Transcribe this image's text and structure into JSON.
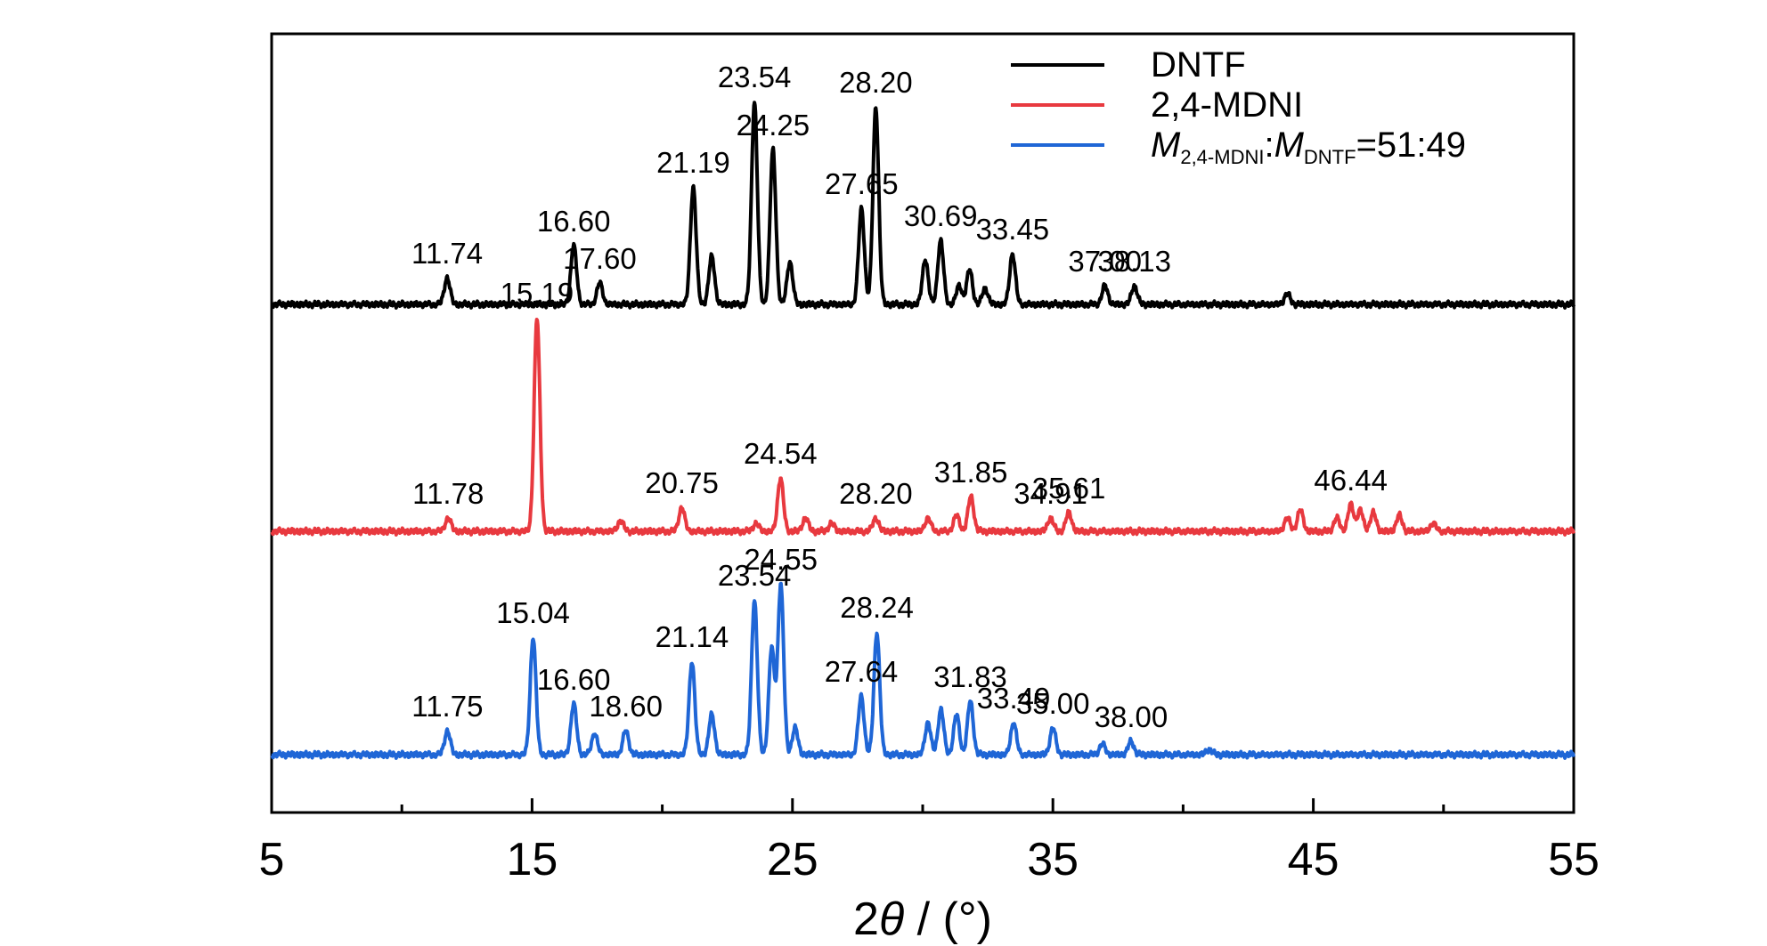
{
  "chart_data": {
    "type": "line",
    "xlabel_parts": {
      "prefix": "2",
      "symbol": "θ",
      "suffix": " / (°)"
    },
    "xlim": [
      5,
      55
    ],
    "xticks": [
      5,
      15,
      25,
      35,
      45,
      55
    ],
    "y_axis": "no ticks, no labels (stacked, offset patterns)",
    "grid": false,
    "legend_position": "top-right",
    "legend": [
      {
        "label": "DNTF",
        "color": "#000000"
      },
      {
        "label": "2,4-MDNI",
        "color": "#e8393f"
      },
      {
        "label_parts": {
          "m1": "M",
          "s1": "2,4-MDNI",
          "colon": ":",
          "m2": "M",
          "s2": "DNTF",
          "ratio": "=51:49"
        },
        "color": "#1f66d6"
      }
    ],
    "series": [
      {
        "name": "DNTF",
        "color": "#000000",
        "peaks": [
          {
            "x": 11.74,
            "h": 0.1,
            "label": "11.74"
          },
          {
            "x": 16.6,
            "h": 0.22,
            "label": "16.60"
          },
          {
            "x": 17.6,
            "h": 0.08,
            "label": "17.60"
          },
          {
            "x": 21.19,
            "h": 0.44,
            "label": "21.19"
          },
          {
            "x": 21.9,
            "h": 0.18
          },
          {
            "x": 23.54,
            "h": 0.76,
            "label": "23.54"
          },
          {
            "x": 24.25,
            "h": 0.58,
            "label": "24.25"
          },
          {
            "x": 24.9,
            "h": 0.16
          },
          {
            "x": 27.65,
            "h": 0.36,
            "label": "27.65"
          },
          {
            "x": 28.2,
            "h": 0.74,
            "label": "28.20"
          },
          {
            "x": 30.1,
            "h": 0.17
          },
          {
            "x": 30.69,
            "h": 0.24,
            "label": "30.69"
          },
          {
            "x": 31.4,
            "h": 0.07
          },
          {
            "x": 31.8,
            "h": 0.13
          },
          {
            "x": 32.4,
            "h": 0.06
          },
          {
            "x": 33.45,
            "h": 0.19,
            "label": "33.45"
          },
          {
            "x": 37.0,
            "h": 0.07,
            "label": "37.00"
          },
          {
            "x": 38.13,
            "h": 0.07,
            "label": "38.13"
          },
          {
            "x": 44.0,
            "h": 0.04
          }
        ]
      },
      {
        "name": "2,4-MDNI",
        "color": "#e8393f",
        "peaks": [
          {
            "x": 11.78,
            "h": 0.05,
            "label": "11.78"
          },
          {
            "x": 15.19,
            "h": 0.8,
            "label": "15.19"
          },
          {
            "x": 18.4,
            "h": 0.04
          },
          {
            "x": 20.75,
            "h": 0.09,
            "label": "20.75"
          },
          {
            "x": 23.6,
            "h": 0.03
          },
          {
            "x": 24.54,
            "h": 0.2,
            "label": "24.54"
          },
          {
            "x": 25.5,
            "h": 0.05
          },
          {
            "x": 26.5,
            "h": 0.03
          },
          {
            "x": 28.2,
            "h": 0.05,
            "label": "28.20"
          },
          {
            "x": 30.2,
            "h": 0.05
          },
          {
            "x": 31.3,
            "h": 0.06
          },
          {
            "x": 31.85,
            "h": 0.13,
            "label": "31.85"
          },
          {
            "x": 34.91,
            "h": 0.05,
            "label": "34.91"
          },
          {
            "x": 35.61,
            "h": 0.07,
            "label": "35.61"
          },
          {
            "x": 44.0,
            "h": 0.05
          },
          {
            "x": 44.5,
            "h": 0.08
          },
          {
            "x": 45.9,
            "h": 0.05
          },
          {
            "x": 46.44,
            "h": 0.1,
            "label": "46.44"
          },
          {
            "x": 46.8,
            "h": 0.08
          },
          {
            "x": 47.3,
            "h": 0.07
          },
          {
            "x": 48.3,
            "h": 0.06
          },
          {
            "x": 49.6,
            "h": 0.03
          }
        ]
      },
      {
        "name": "M2,4-MDNI:MDNTF=51:49",
        "color": "#1f66d6",
        "peaks": [
          {
            "x": 11.75,
            "h": 0.09,
            "label": "11.75"
          },
          {
            "x": 15.04,
            "h": 0.44,
            "label": "15.04"
          },
          {
            "x": 16.6,
            "h": 0.19,
            "label": "16.60"
          },
          {
            "x": 17.4,
            "h": 0.08
          },
          {
            "x": 18.6,
            "h": 0.09,
            "label": "18.60"
          },
          {
            "x": 21.14,
            "h": 0.35,
            "label": "21.14"
          },
          {
            "x": 21.9,
            "h": 0.15
          },
          {
            "x": 23.54,
            "h": 0.58,
            "label": "23.54"
          },
          {
            "x": 24.2,
            "h": 0.4
          },
          {
            "x": 24.55,
            "h": 0.64,
            "label": "24.55"
          },
          {
            "x": 25.1,
            "h": 0.1
          },
          {
            "x": 27.64,
            "h": 0.22,
            "label": "27.64"
          },
          {
            "x": 28.24,
            "h": 0.46,
            "label": "28.24"
          },
          {
            "x": 30.2,
            "h": 0.12
          },
          {
            "x": 30.7,
            "h": 0.17
          },
          {
            "x": 31.83,
            "h": 0.2,
            "label": "31.83"
          },
          {
            "x": 31.3,
            "h": 0.15
          },
          {
            "x": 33.49,
            "h": 0.12,
            "label": "33.49"
          },
          {
            "x": 35.0,
            "h": 0.1,
            "label": "35.00"
          },
          {
            "x": 36.9,
            "h": 0.04
          },
          {
            "x": 38.0,
            "h": 0.05,
            "label": "38.00"
          },
          {
            "x": 41.0,
            "h": 0.02
          }
        ]
      }
    ]
  }
}
